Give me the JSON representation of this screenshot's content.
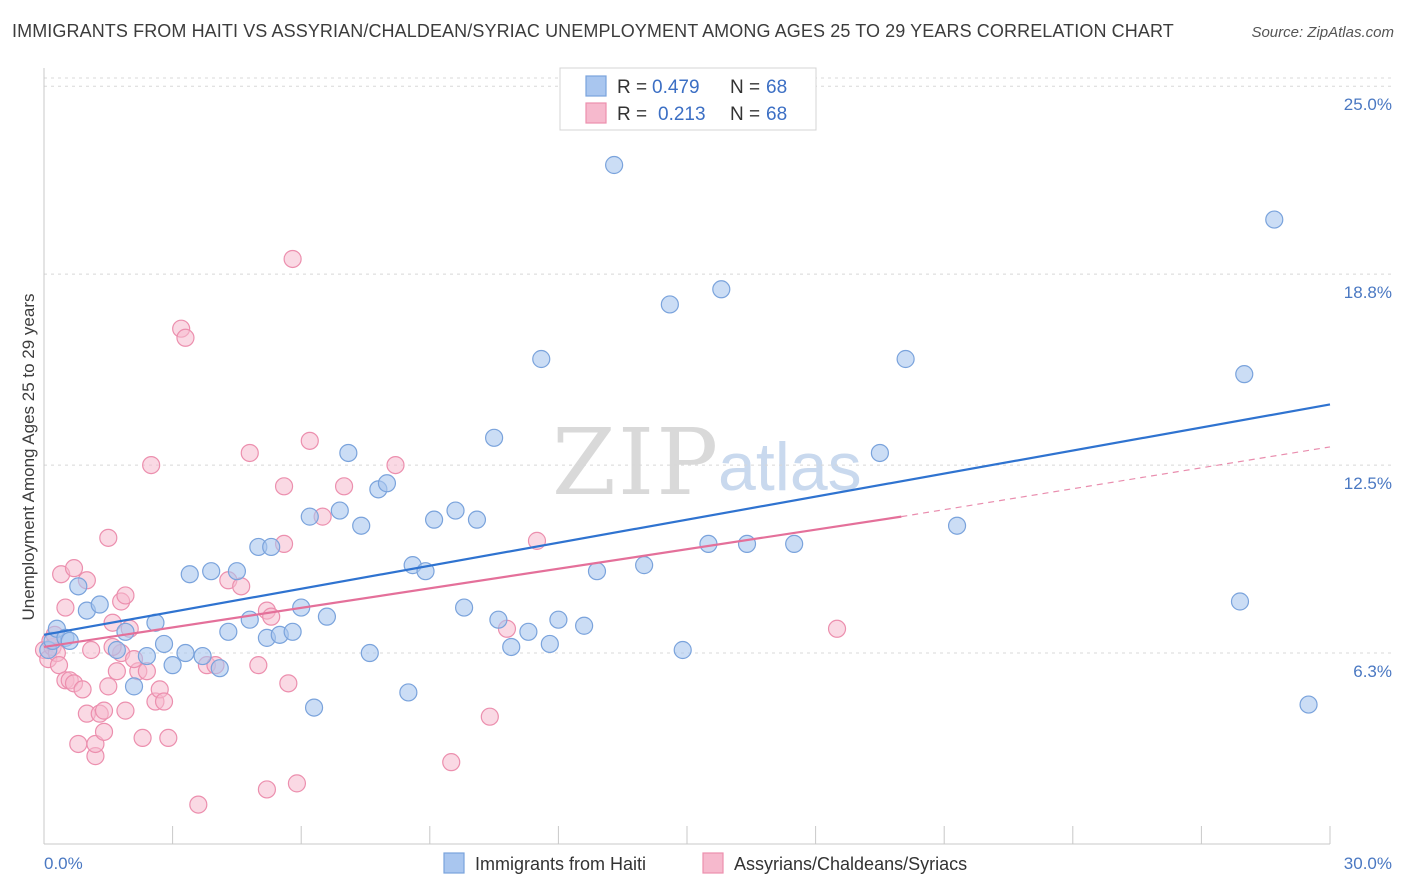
{
  "header": {
    "title": "IMMIGRANTS FROM HAITI VS ASSYRIAN/CHALDEAN/SYRIAC UNEMPLOYMENT AMONG AGES 25 TO 29 YEARS CORRELATION CHART",
    "source": "Source: ZipAtlas.com"
  },
  "watermark": {
    "zip": "ZIP",
    "atlas": "atlas"
  },
  "legend": {
    "r_label": "R =",
    "n_label": "N =",
    "series1_r": "0.479",
    "series1_n": "68",
    "series2_r": "0.213",
    "series2_n": "68"
  },
  "colors": {
    "series1_fill": "#a9c6ef",
    "series1_stroke": "#7aa3dc",
    "series1_line": "#2f73d0",
    "series2_fill": "#f6b9cd",
    "series2_stroke": "#ec8fae",
    "series2_line": "#e4709a",
    "tick_label": "#4a78c2",
    "grid": "#d8d8d8"
  },
  "chart_data": {
    "type": "scatter",
    "title": "IMMIGRANTS FROM HAITI VS ASSYRIAN/CHALDEAN/SYRIAC UNEMPLOYMENT AMONG AGES 25 TO 29 YEARS CORRELATION CHART",
    "xlabel": "",
    "ylabel": "Unemployment Among Ages 25 to 29 years",
    "xlim": [
      0,
      30
    ],
    "ylim": [
      0,
      25.6
    ],
    "x_tick_labels": [
      "0.0%",
      "30.0%"
    ],
    "y_ticks": [
      6.3,
      12.5,
      18.8,
      25.0
    ],
    "y_tick_labels": [
      "6.3%",
      "12.5%",
      "18.8%",
      "25.0%"
    ],
    "grid": true,
    "legend_position": "top-center",
    "series": [
      {
        "name": "Immigrants from Haiti",
        "r": 0.479,
        "n": 68,
        "trend": {
          "x": [
            0,
            30
          ],
          "y": [
            6.9,
            14.5
          ]
        },
        "points": [
          [
            0.1,
            6.4
          ],
          [
            0.2,
            6.7
          ],
          [
            0.3,
            7.1
          ],
          [
            0.5,
            6.8
          ],
          [
            0.6,
            6.7
          ],
          [
            0.8,
            8.5
          ],
          [
            1.0,
            7.7
          ],
          [
            1.3,
            7.9
          ],
          [
            1.7,
            6.4
          ],
          [
            1.9,
            7.0
          ],
          [
            2.1,
            5.2
          ],
          [
            2.4,
            6.2
          ],
          [
            2.6,
            7.3
          ],
          [
            2.8,
            6.6
          ],
          [
            3.0,
            5.9
          ],
          [
            3.3,
            6.3
          ],
          [
            3.4,
            8.9
          ],
          [
            3.7,
            6.2
          ],
          [
            3.9,
            9.0
          ],
          [
            4.1,
            5.8
          ],
          [
            4.3,
            7.0
          ],
          [
            4.5,
            9.0
          ],
          [
            4.8,
            7.4
          ],
          [
            5.0,
            9.8
          ],
          [
            5.2,
            6.8
          ],
          [
            5.3,
            9.8
          ],
          [
            5.5,
            6.9
          ],
          [
            5.8,
            7.0
          ],
          [
            6.0,
            7.8
          ],
          [
            6.2,
            10.8
          ],
          [
            6.3,
            4.5
          ],
          [
            6.6,
            7.5
          ],
          [
            6.9,
            11.0
          ],
          [
            7.1,
            12.9
          ],
          [
            7.4,
            10.5
          ],
          [
            7.6,
            6.3
          ],
          [
            7.8,
            11.7
          ],
          [
            8.0,
            11.9
          ],
          [
            8.5,
            5.0
          ],
          [
            8.6,
            9.2
          ],
          [
            8.9,
            9.0
          ],
          [
            9.1,
            10.7
          ],
          [
            9.6,
            11.0
          ],
          [
            9.8,
            7.8
          ],
          [
            10.1,
            10.7
          ],
          [
            10.5,
            13.4
          ],
          [
            10.6,
            7.4
          ],
          [
            10.9,
            6.5
          ],
          [
            11.3,
            7.0
          ],
          [
            11.6,
            16.0
          ],
          [
            11.8,
            6.6
          ],
          [
            12.0,
            7.4
          ],
          [
            12.6,
            7.2
          ],
          [
            12.9,
            9.0
          ],
          [
            13.3,
            22.4
          ],
          [
            14.0,
            9.2
          ],
          [
            14.6,
            17.8
          ],
          [
            14.9,
            6.4
          ],
          [
            15.5,
            9.9
          ],
          [
            15.8,
            18.3
          ],
          [
            16.4,
            9.9
          ],
          [
            17.5,
            9.9
          ],
          [
            19.5,
            12.9
          ],
          [
            20.1,
            16.0
          ],
          [
            21.3,
            10.5
          ],
          [
            27.9,
            8.0
          ],
          [
            28.0,
            15.5
          ],
          [
            28.7,
            20.6
          ],
          [
            29.5,
            4.6
          ]
        ]
      },
      {
        "name": "Assyrians/Chaldeans/Syriacs",
        "r": 0.213,
        "n": 68,
        "trend": {
          "x": [
            0,
            20
          ],
          "y": [
            6.5,
            10.8
          ]
        },
        "trend_dashed": {
          "x": [
            20,
            30
          ],
          "y": [
            10.8,
            13.1
          ]
        },
        "points": [
          [
            0.0,
            6.4
          ],
          [
            0.1,
            6.1
          ],
          [
            0.2,
            6.5
          ],
          [
            0.3,
            6.3
          ],
          [
            0.35,
            5.9
          ],
          [
            0.4,
            8.9
          ],
          [
            0.5,
            5.4
          ],
          [
            0.5,
            7.8
          ],
          [
            0.6,
            5.4
          ],
          [
            0.7,
            9.1
          ],
          [
            0.7,
            5.3
          ],
          [
            0.8,
            3.3
          ],
          [
            0.9,
            5.1
          ],
          [
            1.0,
            8.7
          ],
          [
            1.0,
            4.3
          ],
          [
            1.1,
            6.4
          ],
          [
            1.2,
            2.9
          ],
          [
            1.2,
            3.3
          ],
          [
            1.3,
            4.3
          ],
          [
            1.4,
            4.4
          ],
          [
            1.4,
            3.7
          ],
          [
            1.5,
            10.1
          ],
          [
            1.5,
            5.2
          ],
          [
            1.6,
            7.3
          ],
          [
            1.7,
            5.7
          ],
          [
            1.8,
            6.3
          ],
          [
            1.8,
            8.0
          ],
          [
            1.9,
            8.2
          ],
          [
            1.9,
            4.4
          ],
          [
            2.0,
            7.1
          ],
          [
            2.2,
            5.7
          ],
          [
            2.3,
            3.5
          ],
          [
            2.4,
            5.7
          ],
          [
            2.5,
            12.5
          ],
          [
            2.6,
            4.7
          ],
          [
            2.7,
            5.1
          ],
          [
            2.8,
            4.7
          ],
          [
            2.9,
            3.5
          ],
          [
            3.2,
            17.0
          ],
          [
            3.3,
            16.7
          ],
          [
            3.6,
            1.3
          ],
          [
            3.8,
            5.9
          ],
          [
            4.0,
            5.9
          ],
          [
            4.3,
            8.7
          ],
          [
            4.6,
            8.5
          ],
          [
            4.8,
            12.9
          ],
          [
            5.0,
            5.9
          ],
          [
            5.2,
            7.7
          ],
          [
            5.2,
            1.8
          ],
          [
            5.3,
            7.5
          ],
          [
            5.6,
            11.8
          ],
          [
            5.7,
            5.3
          ],
          [
            5.8,
            19.3
          ],
          [
            5.9,
            2.0
          ],
          [
            6.2,
            13.3
          ],
          [
            6.5,
            10.8
          ],
          [
            7.0,
            11.8
          ],
          [
            8.2,
            12.5
          ],
          [
            9.5,
            2.7
          ],
          [
            10.4,
            4.2
          ],
          [
            10.8,
            7.1
          ],
          [
            11.5,
            10.0
          ],
          [
            18.5,
            7.1
          ],
          [
            5.6,
            9.9
          ],
          [
            0.15,
            6.7
          ],
          [
            0.25,
            6.9
          ],
          [
            1.6,
            6.5
          ],
          [
            2.1,
            6.1
          ]
        ]
      }
    ]
  },
  "bottom_legend": {
    "series1": "Immigrants from Haiti",
    "series2": "Assyrians/Chaldeans/Syriacs"
  }
}
